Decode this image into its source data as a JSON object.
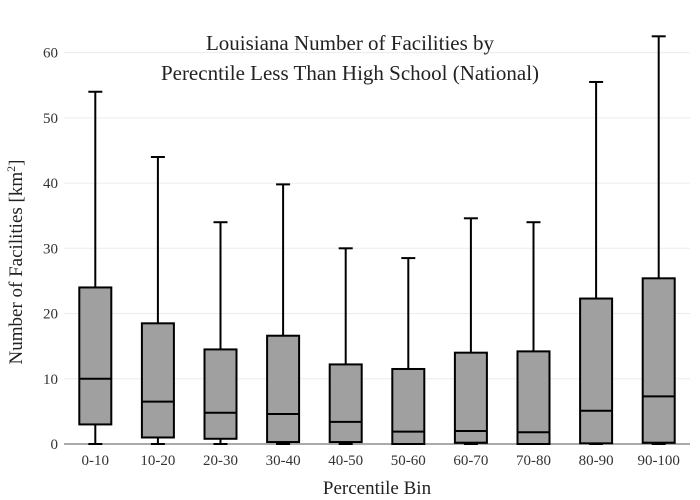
{
  "chart_data": {
    "type": "box",
    "title": [
      "Louisiana Number of Facilities by",
      "Perecntile Less Than High School (National)"
    ],
    "xlabel": "Percentile Bin",
    "ylabel": "Number of Facilities  [km",
    "ylabel_sup": "2",
    "ylabel_close": "]",
    "ylim": [
      0,
      65
    ],
    "yticks": [
      0,
      10,
      20,
      30,
      40,
      50,
      60
    ],
    "grid": true,
    "categories": [
      "0-10",
      "10-20",
      "20-30",
      "30-40",
      "40-50",
      "50-60",
      "60-70",
      "70-80",
      "80-90",
      "90-100"
    ],
    "boxes": [
      {
        "min": 0,
        "q1": 3,
        "median": 10,
        "q3": 24,
        "max": 54
      },
      {
        "min": 0,
        "q1": 1,
        "median": 6.5,
        "q3": 18.5,
        "max": 44
      },
      {
        "min": 0,
        "q1": 0.8,
        "median": 4.8,
        "q3": 14.5,
        "max": 34
      },
      {
        "min": 0,
        "q1": 0.3,
        "median": 4.6,
        "q3": 16.6,
        "max": 39.8
      },
      {
        "min": 0,
        "q1": 0.3,
        "median": 3.4,
        "q3": 12.2,
        "max": 30
      },
      {
        "min": 0,
        "q1": 0,
        "median": 1.9,
        "q3": 11.5,
        "max": 28.5
      },
      {
        "min": 0,
        "q1": 0.2,
        "median": 2,
        "q3": 14,
        "max": 34.6
      },
      {
        "min": 0,
        "q1": 0,
        "median": 1.8,
        "q3": 14.2,
        "max": 34
      },
      {
        "min": 0,
        "q1": 0.1,
        "median": 5.1,
        "q3": 22.3,
        "max": 55.5
      },
      {
        "min": 0,
        "q1": 0.2,
        "median": 7.3,
        "q3": 25.4,
        "max": 62.5
      }
    ],
    "box_fill": "#a0a0a0",
    "line_color": "#000000"
  }
}
